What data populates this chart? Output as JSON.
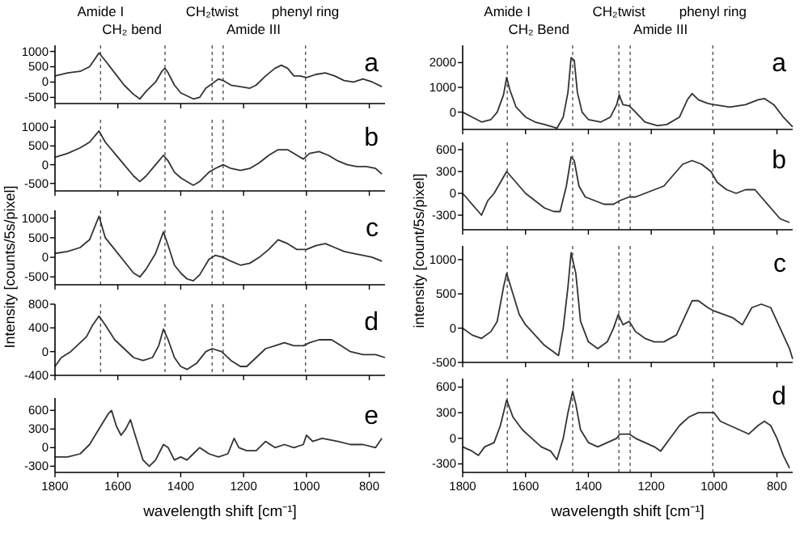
{
  "chart_data": [
    {
      "type": "line",
      "title": "a",
      "color": "#333333",
      "xlim": [
        1800,
        750
      ],
      "xticks": [
        1800,
        1600,
        1400,
        1200,
        1000,
        800
      ],
      "ylim": [
        -700,
        1200
      ],
      "yticks": [
        -500,
        0,
        500,
        1000
      ],
      "tick_labels": "y",
      "annotations": [
        "Amide I",
        "CH₂ bend",
        "CH₂twist",
        "Amide III",
        "phenyl ring"
      ],
      "ref_lines": [
        {
          "axis": "x",
          "value": 1655
        },
        {
          "axis": "x",
          "value": 1450
        },
        {
          "axis": "x",
          "value": 1300
        },
        {
          "axis": "x",
          "value": 1265
        },
        {
          "axis": "x",
          "value": 1003
        }
      ],
      "x": [
        1800,
        1760,
        1720,
        1690,
        1660,
        1640,
        1610,
        1580,
        1550,
        1530,
        1510,
        1480,
        1460,
        1450,
        1440,
        1420,
        1400,
        1380,
        1360,
        1340,
        1320,
        1300,
        1280,
        1265,
        1240,
        1210,
        1180,
        1160,
        1130,
        1100,
        1080,
        1060,
        1040,
        1020,
        1000,
        970,
        940,
        910,
        880,
        850,
        820,
        790,
        760
      ],
      "values": [
        200,
        300,
        350,
        500,
        950,
        700,
        300,
        -100,
        -400,
        -550,
        -300,
        0,
        350,
        450,
        300,
        -100,
        -350,
        -450,
        -550,
        -500,
        -200,
        -50,
        100,
        50,
        -100,
        -150,
        -200,
        -100,
        200,
        450,
        550,
        450,
        200,
        200,
        150,
        250,
        300,
        200,
        50,
        0,
        100,
        0,
        -150
      ]
    },
    {
      "type": "line",
      "title": "b",
      "color": "#333333",
      "xlim": [
        1800,
        750
      ],
      "xticks": [
        1800,
        1600,
        1400,
        1200,
        1000,
        800
      ],
      "ylim": [
        -700,
        1200
      ],
      "yticks": [
        -500,
        0,
        500,
        1000
      ],
      "tick_labels": "y",
      "ref_lines": [
        {
          "axis": "x",
          "value": 1655
        },
        {
          "axis": "x",
          "value": 1450
        },
        {
          "axis": "x",
          "value": 1300
        },
        {
          "axis": "x",
          "value": 1265
        },
        {
          "axis": "x",
          "value": 1003
        }
      ],
      "x": [
        1800,
        1760,
        1720,
        1690,
        1660,
        1640,
        1610,
        1580,
        1550,
        1530,
        1510,
        1480,
        1455,
        1440,
        1420,
        1400,
        1380,
        1360,
        1340,
        1310,
        1290,
        1265,
        1240,
        1210,
        1180,
        1150,
        1120,
        1090,
        1060,
        1030,
        1010,
        990,
        960,
        930,
        900,
        870,
        840,
        810,
        780,
        760
      ],
      "values": [
        200,
        300,
        450,
        600,
        900,
        600,
        300,
        0,
        -300,
        -450,
        -300,
        0,
        250,
        100,
        -200,
        -350,
        -450,
        -550,
        -450,
        -200,
        -100,
        0,
        -100,
        -150,
        -100,
        50,
        250,
        400,
        400,
        250,
        150,
        300,
        350,
        250,
        100,
        0,
        -50,
        -50,
        -100,
        -250
      ]
    },
    {
      "type": "line",
      "title": "c",
      "ylabel": "Intensity [counts/5s/pixel]",
      "color": "#333333",
      "xlim": [
        1800,
        750
      ],
      "xticks": [
        1800,
        1600,
        1400,
        1200,
        1000,
        800
      ],
      "ylim": [
        -700,
        1200
      ],
      "yticks": [
        -500,
        0,
        500,
        1000
      ],
      "tick_labels": "y",
      "ref_lines": [
        {
          "axis": "x",
          "value": 1655
        },
        {
          "axis": "x",
          "value": 1450
        },
        {
          "axis": "x",
          "value": 1300
        },
        {
          "axis": "x",
          "value": 1265
        },
        {
          "axis": "x",
          "value": 1003
        }
      ],
      "x": [
        1800,
        1760,
        1720,
        1690,
        1660,
        1640,
        1610,
        1580,
        1550,
        1530,
        1510,
        1480,
        1455,
        1440,
        1420,
        1400,
        1380,
        1360,
        1340,
        1310,
        1290,
        1265,
        1240,
        1210,
        1180,
        1150,
        1120,
        1090,
        1060,
        1030,
        1000,
        970,
        940,
        910,
        880,
        850,
        820,
        790,
        760
      ],
      "values": [
        100,
        150,
        250,
        450,
        1050,
        500,
        200,
        -100,
        -400,
        -500,
        -300,
        100,
        650,
        300,
        -200,
        -400,
        -550,
        -600,
        -450,
        -50,
        50,
        0,
        -100,
        -200,
        -150,
        0,
        200,
        450,
        350,
        200,
        200,
        300,
        350,
        250,
        150,
        100,
        50,
        0,
        -100
      ]
    },
    {
      "type": "line",
      "title": "d",
      "color": "#333333",
      "xlim": [
        1800,
        750
      ],
      "xticks": [
        1800,
        1600,
        1400,
        1200,
        1000,
        800
      ],
      "ylim": [
        -400,
        800
      ],
      "yticks": [
        -400,
        0,
        400,
        800
      ],
      "tick_labels": "y",
      "ref_lines": [
        {
          "axis": "x",
          "value": 1655
        },
        {
          "axis": "x",
          "value": 1450
        },
        {
          "axis": "x",
          "value": 1300
        },
        {
          "axis": "x",
          "value": 1265
        },
        {
          "axis": "x",
          "value": 1003
        }
      ],
      "x": [
        1800,
        1780,
        1750,
        1720,
        1700,
        1680,
        1660,
        1640,
        1610,
        1580,
        1550,
        1520,
        1490,
        1470,
        1455,
        1440,
        1420,
        1400,
        1380,
        1350,
        1320,
        1300,
        1270,
        1240,
        1210,
        1190,
        1160,
        1130,
        1100,
        1070,
        1040,
        1010,
        990,
        960,
        920,
        890,
        860,
        820,
        780,
        750
      ],
      "values": [
        -250,
        -100,
        0,
        150,
        250,
        450,
        600,
        450,
        200,
        50,
        -100,
        -150,
        -100,
        100,
        380,
        200,
        -100,
        -250,
        -300,
        -200,
        0,
        50,
        0,
        -150,
        -250,
        -250,
        -100,
        50,
        100,
        150,
        100,
        100,
        150,
        200,
        200,
        100,
        0,
        -50,
        -50,
        -100
      ]
    },
    {
      "type": "line",
      "title": "e",
      "xlabel": "wavelength shift [cm⁻¹]",
      "color": "#333333",
      "xlim": [
        1800,
        750
      ],
      "xticks": [
        1800,
        1600,
        1400,
        1200,
        1000,
        800
      ],
      "ylim": [
        -400,
        800
      ],
      "yticks": [
        -300,
        0,
        300,
        600
      ],
      "x": [
        1800,
        1760,
        1720,
        1690,
        1660,
        1630,
        1620,
        1605,
        1590,
        1575,
        1560,
        1545,
        1520,
        1500,
        1480,
        1455,
        1440,
        1420,
        1400,
        1380,
        1360,
        1340,
        1310,
        1280,
        1250,
        1230,
        1215,
        1190,
        1160,
        1130,
        1100,
        1070,
        1040,
        1010,
        1000,
        980,
        950,
        900,
        860,
        820,
        780,
        760
      ],
      "values": [
        -150,
        -150,
        -100,
        50,
        300,
        550,
        600,
        350,
        200,
        300,
        450,
        200,
        -200,
        -300,
        -200,
        50,
        0,
        -200,
        -150,
        -200,
        -100,
        0,
        -100,
        -150,
        -100,
        150,
        0,
        -50,
        -50,
        100,
        0,
        50,
        0,
        50,
        200,
        100,
        150,
        100,
        50,
        50,
        0,
        150
      ]
    },
    {
      "type": "line",
      "title": "a",
      "color": "#333333",
      "xlim": [
        1800,
        750
      ],
      "xticks": [
        1800,
        1600,
        1400,
        1200,
        1000,
        800
      ],
      "ylim": [
        -700,
        2700
      ],
      "yticks": [
        0,
        1000,
        2000
      ],
      "tick_labels": "y",
      "annotations": [
        "Amide I",
        "CH₂ Bend",
        "CH₂twist",
        "Amide III",
        "phenyl ring"
      ],
      "ref_lines": [
        {
          "axis": "x",
          "value": 1658
        },
        {
          "axis": "x",
          "value": 1450
        },
        {
          "axis": "x",
          "value": 1303
        },
        {
          "axis": "x",
          "value": 1267
        },
        {
          "axis": "x",
          "value": 1004
        }
      ],
      "x": [
        1800,
        1770,
        1740,
        1710,
        1690,
        1670,
        1660,
        1650,
        1630,
        1600,
        1570,
        1540,
        1500,
        1480,
        1465,
        1455,
        1445,
        1435,
        1420,
        1400,
        1360,
        1330,
        1310,
        1302,
        1290,
        1270,
        1250,
        1220,
        1180,
        1150,
        1110,
        1085,
        1070,
        1050,
        1020,
        1000,
        950,
        900,
        860,
        840,
        810,
        780,
        750
      ],
      "values": [
        0,
        -200,
        -400,
        -300,
        0,
        700,
        1400,
        900,
        200,
        -200,
        -400,
        -500,
        -650,
        -200,
        800,
        2200,
        2100,
        800,
        0,
        -300,
        -400,
        -200,
        300,
        700,
        300,
        250,
        0,
        -400,
        -550,
        -500,
        -200,
        500,
        750,
        500,
        350,
        300,
        200,
        300,
        500,
        550,
        300,
        -200,
        -600
      ]
    },
    {
      "type": "line",
      "title": "b",
      "ylabel": "intensity [count/5s/pixel]",
      "color": "#333333",
      "xlim": [
        1800,
        750
      ],
      "xticks": [
        1800,
        1600,
        1400,
        1200,
        1000,
        800
      ],
      "ylim": [
        -500,
        700
      ],
      "yticks": [
        -300,
        0,
        300,
        600
      ],
      "tick_labels": "y",
      "ref_lines": [
        {
          "axis": "x",
          "value": 1658
        },
        {
          "axis": "x",
          "value": 1450
        },
        {
          "axis": "x",
          "value": 1303
        },
        {
          "axis": "x",
          "value": 1267
        },
        {
          "axis": "x",
          "value": 1004
        }
      ],
      "x": [
        1800,
        1780,
        1760,
        1740,
        1720,
        1700,
        1680,
        1660,
        1640,
        1620,
        1600,
        1570,
        1540,
        1510,
        1490,
        1470,
        1455,
        1445,
        1430,
        1410,
        1380,
        1350,
        1320,
        1300,
        1270,
        1250,
        1220,
        1190,
        1160,
        1130,
        1100,
        1070,
        1040,
        1010,
        990,
        960,
        930,
        900,
        870,
        850,
        820,
        790,
        760
      ],
      "values": [
        0,
        -100,
        -200,
        -300,
        -100,
        0,
        150,
        300,
        200,
        100,
        0,
        -100,
        -200,
        -250,
        -250,
        100,
        500,
        450,
        100,
        -50,
        -100,
        -150,
        -150,
        -100,
        -50,
        -50,
        0,
        50,
        100,
        250,
        400,
        450,
        400,
        300,
        150,
        50,
        0,
        50,
        50,
        -50,
        -200,
        -350,
        -400
      ]
    },
    {
      "type": "line",
      "title": "c",
      "color": "#333333",
      "xlim": [
        1800,
        750
      ],
      "xticks": [
        1800,
        1600,
        1400,
        1200,
        1000,
        800
      ],
      "ylim": [
        -500,
        1200
      ],
      "yticks": [
        -500,
        0,
        500,
        1000
      ],
      "tick_labels": "y",
      "ref_lines": [
        {
          "axis": "x",
          "value": 1658
        },
        {
          "axis": "x",
          "value": 1450
        },
        {
          "axis": "x",
          "value": 1303
        },
        {
          "axis": "x",
          "value": 1267
        },
        {
          "axis": "x",
          "value": 1004
        }
      ],
      "x": [
        1800,
        1770,
        1740,
        1710,
        1690,
        1670,
        1660,
        1640,
        1620,
        1600,
        1570,
        1540,
        1510,
        1495,
        1480,
        1465,
        1455,
        1440,
        1425,
        1400,
        1370,
        1340,
        1320,
        1305,
        1290,
        1270,
        1250,
        1220,
        1190,
        1160,
        1120,
        1090,
        1070,
        1050,
        1020,
        1000,
        970,
        940,
        910,
        880,
        850,
        820,
        790,
        760,
        750
      ],
      "values": [
        0,
        -100,
        -150,
        -50,
        100,
        600,
        800,
        500,
        200,
        50,
        -100,
        -250,
        -350,
        -400,
        0,
        600,
        1100,
        800,
        100,
        -200,
        -300,
        -200,
        0,
        200,
        50,
        100,
        -50,
        -150,
        -200,
        -200,
        -100,
        200,
        400,
        400,
        300,
        250,
        200,
        150,
        50,
        300,
        350,
        300,
        0,
        -300,
        -450
      ]
    },
    {
      "type": "line",
      "title": "d",
      "xlabel": "wavelength shift [cm⁻¹]",
      "color": "#333333",
      "xlim": [
        1800,
        750
      ],
      "xticks": [
        1800,
        1600,
        1400,
        1200,
        1000,
        800
      ],
      "ylim": [
        -400,
        700
      ],
      "yticks": [
        -300,
        0,
        300,
        600
      ],
      "ref_lines": [
        {
          "axis": "x",
          "value": 1658
        },
        {
          "axis": "x",
          "value": 1450
        },
        {
          "axis": "x",
          "value": 1303
        },
        {
          "axis": "x",
          "value": 1267
        },
        {
          "axis": "x",
          "value": 1004
        }
      ],
      "x": [
        1800,
        1770,
        1750,
        1730,
        1700,
        1680,
        1660,
        1640,
        1610,
        1580,
        1550,
        1520,
        1500,
        1480,
        1465,
        1450,
        1440,
        1425,
        1400,
        1370,
        1340,
        1310,
        1300,
        1270,
        1250,
        1220,
        1190,
        1170,
        1140,
        1110,
        1080,
        1050,
        1020,
        1000,
        980,
        950,
        920,
        890,
        860,
        840,
        820,
        800,
        780,
        760
      ],
      "values": [
        -100,
        -150,
        -200,
        -100,
        -50,
        150,
        450,
        250,
        100,
        0,
        -100,
        -150,
        -250,
        0,
        300,
        550,
        400,
        100,
        -50,
        -100,
        -50,
        0,
        50,
        50,
        0,
        -50,
        -100,
        -150,
        0,
        150,
        250,
        300,
        300,
        300,
        200,
        150,
        100,
        50,
        150,
        200,
        150,
        0,
        -200,
        -350
      ]
    }
  ]
}
